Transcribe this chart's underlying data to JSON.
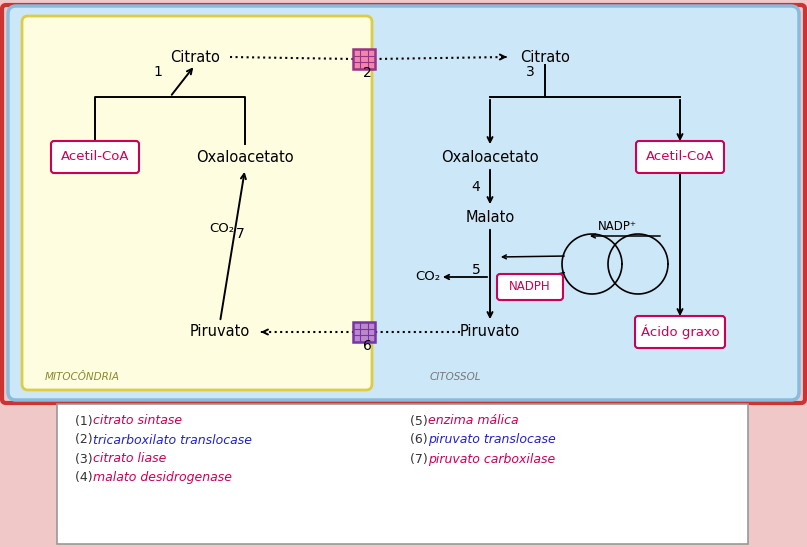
{
  "bg_outer": "#f0c8c8",
  "bg_cell": "#cce8f8",
  "bg_mito": "#fffde0",
  "border_outer": "#cc3333",
  "border_cell": "#88bbdd",
  "border_mito": "#ddcc44",
  "label_mito": "MITOCÔNDRIA",
  "label_cyto": "CITOSSOL",
  "legend_items_left": [
    [
      "(1) ",
      "citrato sintase",
      "#cc0055"
    ],
    [
      "(2) ",
      "tricarboxilato translocase",
      "#2222cc"
    ],
    [
      "(3) ",
      "citrato liase",
      "#cc0055"
    ],
    [
      "(4) ",
      "malato desidrogenase",
      "#cc0055"
    ]
  ],
  "legend_items_right": [
    [
      "(5) ",
      "enzima málica",
      "#cc0055"
    ],
    [
      "(6) ",
      "piruvato translocase",
      "#2222cc"
    ],
    [
      "(7) ",
      "piruvato carboxilase",
      "#cc0055"
    ]
  ]
}
